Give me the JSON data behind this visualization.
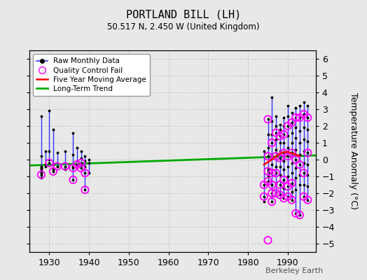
{
  "title": "PORTLAND BILL (LH)",
  "subtitle": "50.517 N, 2.450 W (United Kingdom)",
  "ylabel": "Temperature Anomaly (°C)",
  "attribution": "Berkeley Earth",
  "xlim": [
    1925,
    1997
  ],
  "ylim": [
    -5.5,
    6.5
  ],
  "yticks": [
    -5,
    -4,
    -3,
    -2,
    -1,
    0,
    1,
    2,
    3,
    4,
    5,
    6
  ],
  "xticks": [
    1930,
    1940,
    1950,
    1960,
    1970,
    1980,
    1990
  ],
  "bg_color": "#e8e8e8",
  "plot_bg_color": "#e8e8e8",
  "grid_color": "#cccccc",
  "raw_color": "#3333ff",
  "qc_color": "#ff00ff",
  "moving_avg_color": "red",
  "trend_color": "#00aa00",
  "raw_monthly_data": [
    [
      1928,
      2.6,
      -1.4
    ],
    [
      1929,
      0.5,
      -0.8
    ],
    [
      1930,
      2.9,
      -0.3
    ],
    [
      1931,
      1.8,
      -0.8
    ],
    [
      1932,
      0.4,
      -0.5
    ],
    [
      1933,
      0.1,
      -0.3
    ],
    [
      1934,
      0.5,
      -0.6
    ],
    [
      1935,
      0.1,
      -0.2
    ],
    [
      1936,
      1.6,
      -1.2
    ],
    [
      1937,
      0.7,
      -0.4
    ],
    [
      1938,
      0.5,
      -0.6
    ],
    [
      1939,
      0.2,
      -1.8
    ],
    [
      1940,
      0.0,
      -0.8
    ],
    [
      1984,
      0.5,
      -2.5
    ],
    [
      1985,
      2.4,
      -1.5
    ],
    [
      1986,
      3.7,
      -2.5
    ],
    [
      1987,
      2.6,
      -2.1
    ],
    [
      1988,
      2.1,
      -2.2
    ],
    [
      1989,
      2.5,
      -2.4
    ],
    [
      1990,
      3.2,
      -2.3
    ],
    [
      1991,
      2.8,
      -2.5
    ],
    [
      1992,
      3.1,
      -3.3
    ],
    [
      1993,
      3.2,
      -3.4
    ],
    [
      1994,
      3.4,
      -2.3
    ],
    [
      1995,
      3.2,
      -2.5
    ]
  ],
  "extra_points_1928": [
    -0.6,
    -0.7,
    -0.5,
    0.2,
    -0.5,
    -1.1,
    -0.8,
    -0.4,
    -0.9
  ],
  "extra_points_1929": [
    0.5,
    -0.3,
    -0.4
  ],
  "extra_points_1930": [
    0.5,
    -0.2,
    0.0
  ],
  "extra_points_1931": [
    -0.3,
    -0.6,
    -0.7
  ],
  "extra_points_1932": [
    -0.4,
    -0.4
  ],
  "extra_points_1936": [
    0.3,
    -0.4,
    -0.5,
    -1.2
  ],
  "extra_points_1938": [
    0.1,
    -0.3,
    -0.2,
    -0.5
  ],
  "extra_points_1939": [
    -0.1,
    -0.4,
    -0.8,
    -1.8
  ],
  "qc_fail_data": [
    [
      1928,
      -0.9
    ],
    [
      1930,
      -0.2
    ],
    [
      1931,
      -0.7
    ],
    [
      1932,
      -0.4
    ],
    [
      1934,
      -0.4
    ],
    [
      1936,
      -0.5
    ],
    [
      1936,
      -1.2
    ],
    [
      1937,
      -0.3
    ],
    [
      1938,
      -0.2
    ],
    [
      1938,
      -0.5
    ],
    [
      1939,
      -0.8
    ],
    [
      1939,
      -1.8
    ],
    [
      1984,
      -2.2
    ],
    [
      1984,
      -1.5
    ],
    [
      1985,
      2.4
    ],
    [
      1985,
      0.2
    ],
    [
      1985,
      -0.7
    ],
    [
      1985,
      -1.3
    ],
    [
      1986,
      1.0
    ],
    [
      1986,
      -0.8
    ],
    [
      1986,
      -1.5
    ],
    [
      1986,
      -2.0
    ],
    [
      1986,
      -2.5
    ],
    [
      1987,
      1.6
    ],
    [
      1987,
      0.2
    ],
    [
      1987,
      -0.8
    ],
    [
      1987,
      -2.0
    ],
    [
      1988,
      1.4
    ],
    [
      1988,
      0.1
    ],
    [
      1988,
      -1.5
    ],
    [
      1988,
      -2.1
    ],
    [
      1989,
      1.5
    ],
    [
      1989,
      0.4
    ],
    [
      1989,
      -1.2
    ],
    [
      1989,
      -2.3
    ],
    [
      1990,
      2.0
    ],
    [
      1990,
      0.2
    ],
    [
      1990,
      -1.6
    ],
    [
      1990,
      -2.2
    ],
    [
      1991,
      2.2
    ],
    [
      1991,
      0.4
    ],
    [
      1991,
      -1.4
    ],
    [
      1991,
      -2.4
    ],
    [
      1992,
      2.5
    ],
    [
      1992,
      0.0
    ],
    [
      1992,
      -3.2
    ],
    [
      1993,
      2.5
    ],
    [
      1993,
      -0.3
    ],
    [
      1993,
      -3.3
    ],
    [
      1994,
      2.7
    ],
    [
      1994,
      -0.8
    ],
    [
      1994,
      -2.2
    ],
    [
      1995,
      2.5
    ],
    [
      1995,
      0.4
    ],
    [
      1995,
      -2.4
    ],
    [
      1985,
      -4.8
    ]
  ],
  "moving_avg_x": [
    1984,
    1985,
    1986,
    1987,
    1988,
    1989,
    1990,
    1991,
    1992,
    1993
  ],
  "moving_avg_y": [
    -0.3,
    -0.15,
    0.0,
    0.2,
    0.35,
    0.45,
    0.45,
    0.38,
    0.3,
    0.22
  ],
  "trend_x": [
    1925,
    1997
  ],
  "trend_y": [
    -0.35,
    0.25
  ],
  "scatter_data": {
    "1928": [
      2.6,
      -0.6,
      -0.7,
      -0.5,
      0.2,
      -0.5,
      -1.1,
      -0.8,
      -0.4,
      -0.9
    ],
    "1929": [
      0.5,
      -0.3,
      -0.4
    ],
    "1930": [
      2.9,
      0.5,
      -0.2,
      0.0
    ],
    "1931": [
      1.8,
      -0.3,
      -0.6,
      -0.7
    ],
    "1932": [
      0.4,
      -0.4,
      -0.4
    ],
    "1933": [],
    "1934": [
      0.5,
      -0.4,
      -0.6
    ],
    "1935": [],
    "1936": [
      1.6,
      0.3,
      -0.4,
      -0.5,
      -1.2
    ],
    "1937": [
      0.7,
      -0.3,
      -0.3
    ],
    "1938": [
      0.5,
      0.1,
      -0.3,
      -0.2,
      -0.5
    ],
    "1939": [
      0.2,
      -0.1,
      -0.4,
      -0.8,
      -1.8
    ],
    "1940": [
      0.0,
      -0.2,
      -0.8
    ],
    "1984": [
      0.5,
      -1.5,
      -2.2,
      -2.5
    ],
    "1985": [
      2.4,
      1.5,
      0.7,
      0.2,
      -0.7,
      -1.0,
      -0.8,
      -1.3,
      -0.6,
      0.2
    ],
    "1986": [
      3.7,
      2.3,
      1.5,
      1.0,
      0.3,
      -0.3,
      -0.8,
      -1.5,
      -2.0,
      -2.5
    ],
    "1987": [
      2.6,
      2.0,
      1.6,
      1.2,
      0.6,
      0.2,
      -0.4,
      -0.8,
      -1.4,
      -2.0
    ],
    "1988": [
      2.1,
      1.8,
      1.4,
      1.0,
      0.5,
      0.1,
      -0.4,
      -0.9,
      -1.5,
      -2.1
    ],
    "1989": [
      2.5,
      2.0,
      1.5,
      1.0,
      0.4,
      -0.1,
      -0.6,
      -1.2,
      -1.7,
      -2.3
    ],
    "1990": [
      3.2,
      2.6,
      2.0,
      1.4,
      0.7,
      0.2,
      -0.4,
      -1.0,
      -1.6,
      -2.2
    ],
    "1991": [
      2.8,
      2.2,
      1.6,
      1.0,
      0.4,
      -0.2,
      -0.8,
      -1.4,
      -1.9,
      -2.4
    ],
    "1992": [
      3.1,
      2.5,
      1.9,
      1.3,
      0.6,
      0.0,
      -0.5,
      -1.1,
      -1.8,
      -3.2
    ],
    "1993": [
      3.2,
      2.5,
      1.7,
      1.0,
      0.3,
      -0.3,
      -0.9,
      -1.5,
      -3.3
    ],
    "1994": [
      3.4,
      2.7,
      1.9,
      1.2,
      0.5,
      -0.2,
      -0.8,
      -1.5,
      -2.2
    ],
    "1995": [
      3.2,
      2.5,
      1.8,
      1.1,
      0.4,
      -0.3,
      -0.9,
      -1.6,
      -2.4
    ]
  }
}
